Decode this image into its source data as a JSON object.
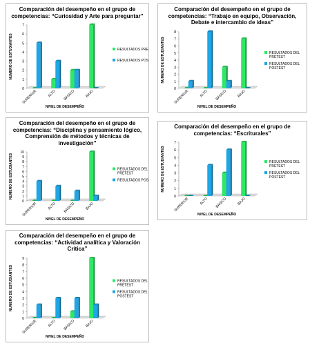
{
  "chart_data": [
    {
      "type": "bar",
      "title": "Comparación del desempeño en el grupo de competencias:  “Curiosidad y Arte para preguntar”",
      "y_label": "NUMERO DE ESTUDIANTES",
      "x_label": "NIVEL DE DESEMPEÑO",
      "categories": [
        "SUPERIOR",
        "ALTO",
        "BÁSICO",
        "BAJO"
      ],
      "series": [
        {
          "name": "RESULTADOS PRETEST",
          "color": "#2ee866",
          "values": [
            0,
            1,
            2,
            7
          ]
        },
        {
          "name": "RESULTADOS POSTEST",
          "color": "#1ea6e6",
          "values": [
            5,
            3,
            2,
            0
          ]
        }
      ],
      "ylim": [
        0,
        7
      ],
      "yticks": [
        0,
        1,
        2,
        3,
        4,
        5,
        6,
        7
      ],
      "legend": "right"
    },
    {
      "type": "bar",
      "title": "Comparación del desempeño en el grupo de competencias: “Trabajo en equipo, Observación, Debate e intercambio de ideas”",
      "y_label": "NUMERO DE ESTUDIANTES",
      "x_label": "NIVEL DE DESEMPEÑO",
      "categories": [
        "SUPERIOR",
        "ALTO",
        "BÁSICO",
        "BAJO"
      ],
      "series": [
        {
          "name": "RESULTADOS DEL PRETEST",
          "color": "#2ee866",
          "values": [
            0,
            0,
            3,
            7
          ]
        },
        {
          "name": "RESULTADOS DEL POSTEST",
          "color": "#1ea6e6",
          "values": [
            1,
            8,
            1,
            0
          ]
        }
      ],
      "ylim": [
        0,
        8
      ],
      "yticks": [
        0,
        1,
        2,
        3,
        4,
        5,
        6,
        7,
        8
      ],
      "legend": "right"
    },
    {
      "type": "bar",
      "title": "Comparación del desempeño en el grupo de competencias: “Disciplina y pensamiento lógico, Comprensión de métodos y técnicas de investigación”",
      "y_label": "NUMERO DE ESTUDIANTES",
      "x_label": "NIVEL DE DESEMPEÑO",
      "categories": [
        "SUPERIOR",
        "ALTO",
        "BÁSICO",
        "BAJO"
      ],
      "series": [
        {
          "name": "RESULTADOS DEL PRETEST",
          "color": "#2ee866",
          "values": [
            0,
            0,
            0,
            10
          ]
        },
        {
          "name": "RESULTADOS POSTEST",
          "color": "#1ea6e6",
          "values": [
            4,
            3,
            2,
            1
          ]
        }
      ],
      "ylim": [
        0,
        10
      ],
      "yticks": [
        0,
        1,
        2,
        3,
        4,
        5,
        6,
        7,
        8,
        9,
        10
      ],
      "legend": "right"
    },
    {
      "type": "bar",
      "title": "Comparación del desempeño en el grupo de competencias: “Escriturales”",
      "y_label": "NUMERO DE ESTUDIANTES",
      "x_label": "NIVEL DE DESEMPEÑO",
      "categories": [
        "SUPERIOR",
        "ALTO",
        "BÁSICO",
        "BAJO"
      ],
      "series": [
        {
          "name": "RESULTADOS DEL PRETEST",
          "color": "#2ee866",
          "values": [
            0,
            0,
            3,
            7
          ]
        },
        {
          "name": "RESULTADOS DEL POSTEST",
          "color": "#1ea6e6",
          "values": [
            0,
            4,
            6,
            0
          ]
        }
      ],
      "ylim": [
        0,
        7
      ],
      "yticks": [
        0,
        1,
        2,
        3,
        4,
        5,
        6,
        7
      ],
      "legend": "right"
    },
    {
      "type": "bar",
      "title": "Comparación del desempeño en el grupo de competencias: “Actividad analítica y Valoración Crítica”",
      "y_label": "NUMERO DE ESTUDIANTES",
      "x_label": "NIVEL DE DESEMPEÑO",
      "categories": [
        "SUPERIOR",
        "ALTO",
        "BÁSICO",
        "BAJO"
      ],
      "series": [
        {
          "name": "RESULTADOS DEL PRETEST",
          "color": "#2ee866",
          "values": [
            0,
            0,
            1,
            9
          ]
        },
        {
          "name": "RESULTADOS DEL POSTEST",
          "color": "#1ea6e6",
          "values": [
            2,
            3,
            3,
            2
          ]
        }
      ],
      "ylim": [
        0,
        9
      ],
      "yticks": [
        0,
        1,
        2,
        3,
        4,
        5,
        6,
        7,
        8,
        9
      ],
      "legend": "right"
    }
  ]
}
